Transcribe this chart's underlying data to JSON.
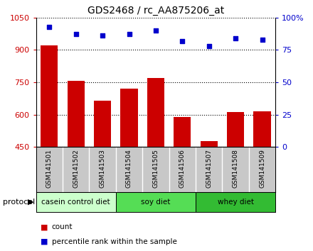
{
  "title": "GDS2468 / rc_AA875206_at",
  "samples": [
    "GSM141501",
    "GSM141502",
    "GSM141503",
    "GSM141504",
    "GSM141505",
    "GSM141506",
    "GSM141507",
    "GSM141508",
    "GSM141509"
  ],
  "counts": [
    920,
    755,
    665,
    720,
    770,
    590,
    475,
    610,
    615
  ],
  "percentile_ranks": [
    93,
    87,
    86,
    87,
    90,
    82,
    78,
    84,
    83
  ],
  "ylim_left": [
    450,
    1050
  ],
  "ylim_right": [
    0,
    100
  ],
  "yticks_left": [
    450,
    600,
    750,
    900,
    1050
  ],
  "yticks_right": [
    0,
    25,
    50,
    75,
    100
  ],
  "bar_color": "#cc0000",
  "dot_color": "#0000cc",
  "label_area_color": "#c8c8c8",
  "protocol_groups": [
    {
      "label": "casein control diet",
      "start": 0,
      "end": 3,
      "color": "#ccffcc"
    },
    {
      "label": "soy diet",
      "start": 3,
      "end": 6,
      "color": "#55dd55"
    },
    {
      "label": "whey diet",
      "start": 6,
      "end": 9,
      "color": "#33bb33"
    }
  ],
  "legend_count_label": "count",
  "legend_pct_label": "percentile rank within the sample",
  "protocol_label": "protocol"
}
